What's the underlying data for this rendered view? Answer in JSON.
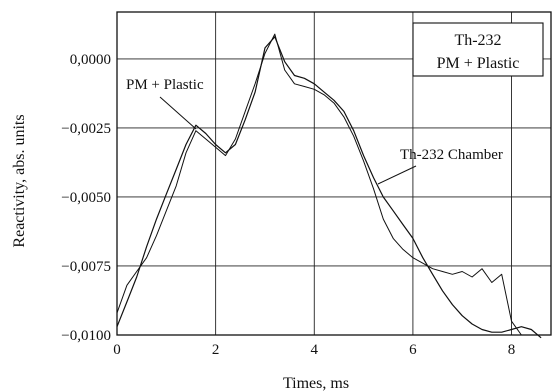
{
  "chart_data": {
    "type": "line",
    "title": "",
    "xlabel": "Times, ms",
    "ylabel": "Reactivity, abs. units",
    "xlim": [
      0,
      8.8
    ],
    "ylim": [
      -0.01,
      0.0017
    ],
    "xticks": [
      0,
      2,
      4,
      6,
      8
    ],
    "yticks": [
      0.0,
      -0.0025,
      -0.005,
      -0.0075,
      -0.01
    ],
    "xtick_labels": [
      "0",
      "2",
      "4",
      "6",
      "8"
    ],
    "ytick_labels": [
      "0,0000",
      "−0,0025",
      "−0,0050",
      "−0,0075",
      "−0,0100"
    ],
    "grid": true,
    "legend_box": [
      "Th-232",
      "PM + Plastic"
    ],
    "annotations": [
      {
        "text": "PM + Plastic",
        "points_to_x": 1.7,
        "points_to_y": -0.0024
      },
      {
        "text": "Th-232 Chamber",
        "points_to_x": 5.3,
        "points_to_y": -0.0043
      }
    ],
    "series": [
      {
        "name": "PM + Plastic",
        "x": [
          0.0,
          0.2,
          0.4,
          0.6,
          0.8,
          1.0,
          1.2,
          1.4,
          1.6,
          1.8,
          2.0,
          2.2,
          2.4,
          2.6,
          2.8,
          3.0,
          3.2,
          3.4,
          3.6,
          3.8,
          4.0,
          4.2,
          4.4,
          4.6,
          4.8,
          5.0,
          5.2,
          5.4,
          5.6,
          5.8,
          6.0,
          6.2,
          6.4,
          6.6,
          6.8,
          7.0,
          7.2,
          7.4,
          7.6,
          7.8,
          8.0,
          8.2,
          8.4,
          8.6
        ],
        "y": [
          -0.0097,
          -0.0088,
          -0.0079,
          -0.0068,
          -0.0058,
          -0.0049,
          -0.004,
          -0.0031,
          -0.0024,
          -0.0027,
          -0.0031,
          -0.0034,
          -0.0031,
          -0.0022,
          -0.0012,
          0.0004,
          0.0008,
          -0.0001,
          -0.0006,
          -0.0007,
          -0.0009,
          -0.0012,
          -0.0015,
          -0.0019,
          -0.0026,
          -0.0035,
          -0.0043,
          -0.005,
          -0.0055,
          -0.006,
          -0.0065,
          -0.0072,
          -0.0078,
          -0.0084,
          -0.0089,
          -0.0093,
          -0.0096,
          -0.0098,
          -0.0099,
          -0.0099,
          -0.0098,
          -0.0097,
          -0.0098,
          -0.0101
        ]
      },
      {
        "name": "Th-232 Chamber",
        "x": [
          0.0,
          0.2,
          0.4,
          0.6,
          0.8,
          1.0,
          1.2,
          1.4,
          1.6,
          1.8,
          2.0,
          2.2,
          2.4,
          2.6,
          2.8,
          3.0,
          3.2,
          3.4,
          3.6,
          3.8,
          4.0,
          4.2,
          4.4,
          4.6,
          4.8,
          5.0,
          5.2,
          5.4,
          5.6,
          5.8,
          6.0,
          6.2,
          6.4,
          6.6,
          6.8,
          7.0,
          7.2,
          7.4,
          7.6,
          7.8,
          8.0,
          8.2
        ],
        "y": [
          -0.0092,
          -0.0082,
          -0.0077,
          -0.0072,
          -0.0064,
          -0.0055,
          -0.0046,
          -0.0034,
          -0.0026,
          -0.0029,
          -0.0032,
          -0.0035,
          -0.0029,
          -0.0019,
          -0.0009,
          0.0002,
          0.0009,
          -0.0004,
          -0.0009,
          -0.001,
          -0.0011,
          -0.0013,
          -0.0016,
          -0.0021,
          -0.0028,
          -0.0037,
          -0.0047,
          -0.0058,
          -0.0065,
          -0.0069,
          -0.0072,
          -0.0074,
          -0.0076,
          -0.0077,
          -0.0078,
          -0.0077,
          -0.0079,
          -0.0076,
          -0.0081,
          -0.0078,
          -0.0095,
          -0.01
        ]
      }
    ]
  }
}
